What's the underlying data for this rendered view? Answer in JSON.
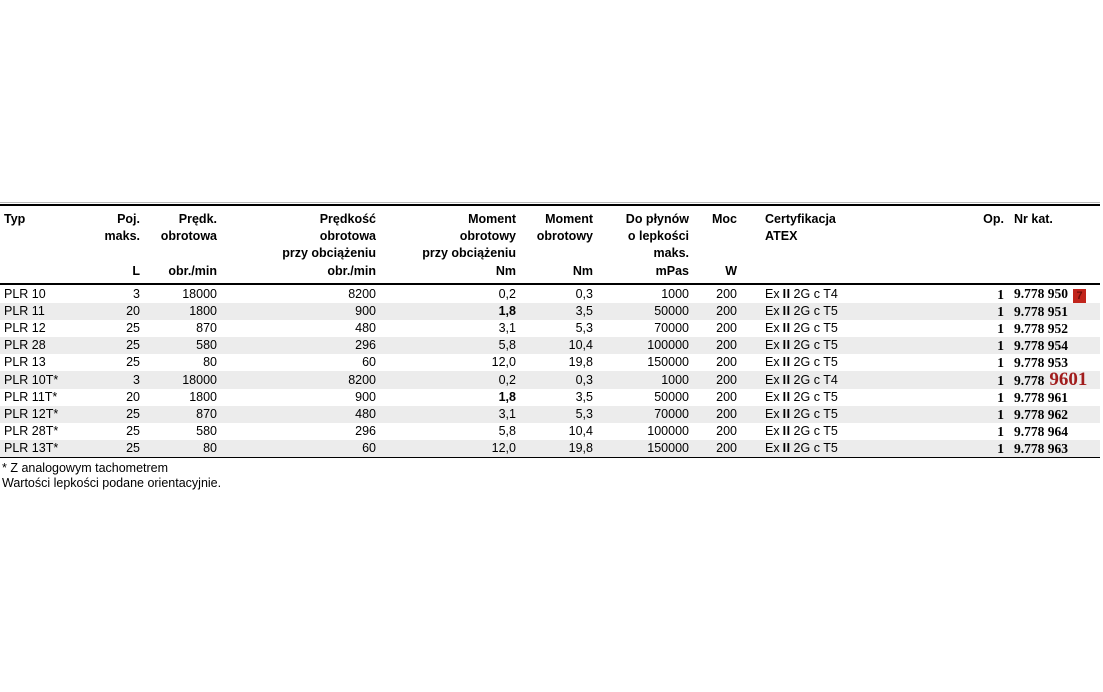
{
  "colors": {
    "stripe": "#ececec",
    "rule": "#000000",
    "badge_bg": "#c1251c",
    "badge_text": "#6f0f0b",
    "red_code_text": "#a11d1d"
  },
  "table": {
    "columns": [
      {
        "id": "typ",
        "header_lines": [
          "Typ"
        ],
        "unit": "",
        "align": "left"
      },
      {
        "id": "poj",
        "header_lines": [
          "Poj.",
          "maks."
        ],
        "unit": "L",
        "align": "right"
      },
      {
        "id": "predk",
        "header_lines": [
          "Prędk.",
          "obrotowa"
        ],
        "unit": "obr./min",
        "align": "right"
      },
      {
        "id": "predk_load",
        "header_lines": [
          "Prędkość",
          "obrotowa",
          "przy obciążeniu"
        ],
        "unit": "obr./min",
        "align": "right"
      },
      {
        "id": "moment_load",
        "header_lines": [
          "Moment",
          "obrotowy",
          "przy obciążeniu"
        ],
        "unit": "Nm",
        "align": "right"
      },
      {
        "id": "moment",
        "header_lines": [
          "Moment",
          "obrotowy"
        ],
        "unit": "Nm",
        "align": "right"
      },
      {
        "id": "lepkosc",
        "header_lines": [
          "Do płynów",
          "o lepkości",
          "maks."
        ],
        "unit": "mPas",
        "align": "right"
      },
      {
        "id": "moc",
        "header_lines": [
          "Moc"
        ],
        "unit": "W",
        "align": "right"
      },
      {
        "id": "atex",
        "header_lines": [
          "Certyfikacja",
          "ATEX"
        ],
        "unit": "",
        "align": "left"
      },
      {
        "id": "op",
        "header_lines": [
          "Op."
        ],
        "unit": "",
        "align": "right"
      },
      {
        "id": "nr_kat",
        "header_lines": [
          "Nr kat."
        ],
        "unit": "",
        "align": "left"
      }
    ],
    "rows": [
      {
        "typ": "PLR 10",
        "poj": "3",
        "predk": "18000",
        "predk_load": "8200",
        "moment_load": "0,2",
        "moment_load_bold": false,
        "moment": "0,3",
        "lepkosc": "1000",
        "moc": "200",
        "atex_ex": "Ex",
        "atex_ii": "II",
        "atex_rest": "2G c T4",
        "op": "1",
        "nr_kat": "9.778 950",
        "badge": "7"
      },
      {
        "typ": "PLR 11",
        "poj": "20",
        "predk": "1800",
        "predk_load": "900",
        "moment_load": "1,8",
        "moment_load_bold": true,
        "moment": "3,5",
        "lepkosc": "50000",
        "moc": "200",
        "atex_ex": "Ex",
        "atex_ii": "II",
        "atex_rest": "2G c T5",
        "op": "1",
        "nr_kat": "9.778 951"
      },
      {
        "typ": "PLR 12",
        "poj": "25",
        "predk": "870",
        "predk_load": "480",
        "moment_load": "3,1",
        "moment_load_bold": false,
        "moment": "5,3",
        "lepkosc": "70000",
        "moc": "200",
        "atex_ex": "Ex",
        "atex_ii": "II",
        "atex_rest": "2G c T5",
        "op": "1",
        "nr_kat": "9.778 952"
      },
      {
        "typ": "PLR 28",
        "poj": "25",
        "predk": "580",
        "predk_load": "296",
        "moment_load": "5,8",
        "moment_load_bold": false,
        "moment": "10,4",
        "lepkosc": "100000",
        "moc": "200",
        "atex_ex": "Ex",
        "atex_ii": "II",
        "atex_rest": "2G c T5",
        "op": "1",
        "nr_kat": "9.778 954"
      },
      {
        "typ": "PLR 13",
        "poj": "25",
        "predk": "80",
        "predk_load": "60",
        "moment_load": "12,0",
        "moment_load_bold": false,
        "moment": "19,8",
        "lepkosc": "150000",
        "moc": "200",
        "atex_ex": "Ex",
        "atex_ii": "II",
        "atex_rest": "2G c T5",
        "op": "1",
        "nr_kat": "9.778 953"
      },
      {
        "typ": "PLR 10T*",
        "poj": "3",
        "predk": "18000",
        "predk_load": "8200",
        "moment_load": "0,2",
        "moment_load_bold": false,
        "moment": "0,3",
        "lepkosc": "1000",
        "moc": "200",
        "atex_ex": "Ex",
        "atex_ii": "II",
        "atex_rest": "2G c T4",
        "op": "1",
        "nr_kat": "9.778",
        "nr_kat_red": "9601"
      },
      {
        "typ": "PLR 11T*",
        "poj": "20",
        "predk": "1800",
        "predk_load": "900",
        "moment_load": "1,8",
        "moment_load_bold": true,
        "moment": "3,5",
        "lepkosc": "50000",
        "moc": "200",
        "atex_ex": "Ex",
        "atex_ii": "II",
        "atex_rest": "2G c T5",
        "op": "1",
        "nr_kat": "9.778 961"
      },
      {
        "typ": "PLR 12T*",
        "poj": "25",
        "predk": "870",
        "predk_load": "480",
        "moment_load": "3,1",
        "moment_load_bold": false,
        "moment": "5,3",
        "lepkosc": "70000",
        "moc": "200",
        "atex_ex": "Ex",
        "atex_ii": "II",
        "atex_rest": "2G c T5",
        "op": "1",
        "nr_kat": "9.778 962"
      },
      {
        "typ": "PLR 28T*",
        "poj": "25",
        "predk": "580",
        "predk_load": "296",
        "moment_load": "5,8",
        "moment_load_bold": false,
        "moment": "10,4",
        "lepkosc": "100000",
        "moc": "200",
        "atex_ex": "Ex",
        "atex_ii": "II",
        "atex_rest": "2G c T5",
        "op": "1",
        "nr_kat": "9.778 964"
      },
      {
        "typ": "PLR 13T*",
        "poj": "25",
        "predk": "80",
        "predk_load": "60",
        "moment_load": "12,0",
        "moment_load_bold": false,
        "moment": "19,8",
        "lepkosc": "150000",
        "moc": "200",
        "atex_ex": "Ex",
        "atex_ii": "II",
        "atex_rest": "2G c T5",
        "op": "1",
        "nr_kat": "9.778 963"
      }
    ],
    "footnotes": [
      "* Z analogowym tachometrem",
      "Wartości lepkości podane orientacyjnie."
    ]
  }
}
